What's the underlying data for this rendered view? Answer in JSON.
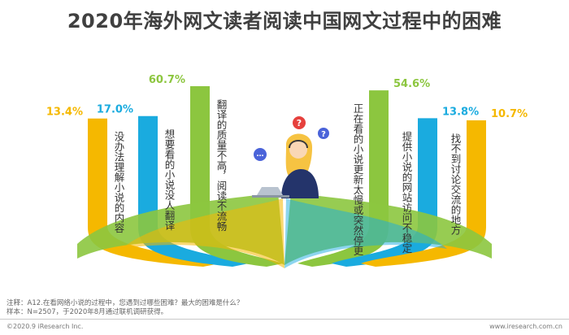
{
  "title": "2020年海外网文读者阅读中国网文过程中的困难",
  "chart_data": {
    "type": "bar",
    "categories": [
      "没办法理解小说的内容",
      "想要看的小说没人翻译",
      "翻译的质量不高，阅读不流畅",
      "正在看的小说更新太慢或突然停更",
      "提供小说的网站访问不稳定",
      "找不到讨论交流的地方"
    ],
    "values": [
      13.4,
      17.0,
      60.7,
      54.6,
      13.8,
      10.7
    ],
    "value_labels": [
      "13.4%",
      "17.0%",
      "60.7%",
      "54.6%",
      "13.8%",
      "10.7%"
    ],
    "colors": [
      "#f5b800",
      "#1aabdf",
      "#8cc63f",
      "#8cc63f",
      "#1aabdf",
      "#f5b800"
    ]
  },
  "notes": {
    "line1": "注释：A12.在看网络小说的过程中，您遇到过哪些困难？最大的困难是什么？",
    "line2": "样本：N=2507，于2020年8月通过联机调研获得。"
  },
  "footer": {
    "left": "©2020.9 iResearch Inc.",
    "right": "www.iresearch.com.cn"
  }
}
